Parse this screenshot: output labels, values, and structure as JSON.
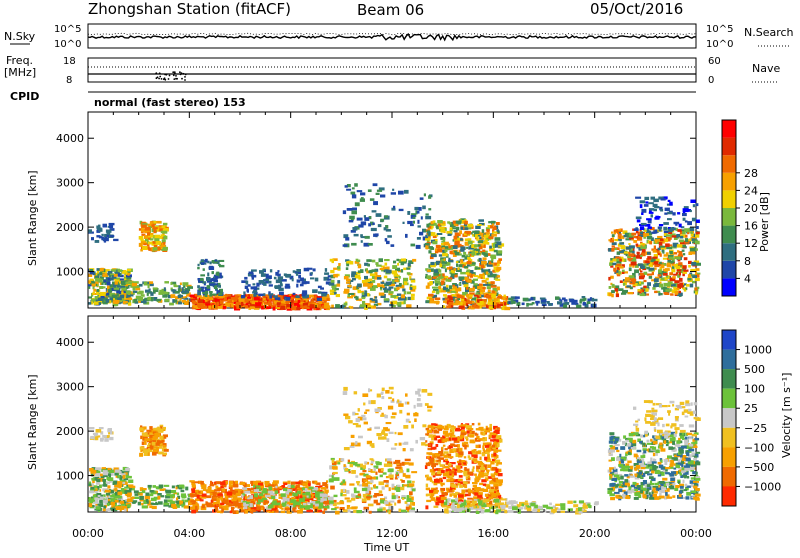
{
  "header": {
    "station": "Zhongshan Station (fitACF)",
    "beam": "Beam 06",
    "date": "05/Oct/2016"
  },
  "top_panels": {
    "nsky_label": "N.Sky",
    "nsky_ticks": [
      "10^5",
      "10^0"
    ],
    "nsearch_label": "N.Search",
    "nsearch_ticks": [
      "10^5",
      "10^0"
    ],
    "freq_label_1": "Freq.",
    "freq_label_2": "[MHz]",
    "freq_ticks": [
      "18",
      "8"
    ],
    "nave_label": "Nave",
    "nave_ticks": [
      "60",
      "0"
    ],
    "cpid_label": "CPID",
    "cpid_text": "normal (fast stereo) 153"
  },
  "chart_data": [
    {
      "type": "heatmap",
      "title": "",
      "xlabel": "Time UT",
      "ylabel": "Slant Range [km]",
      "x_ticks": [
        "00:00",
        "04:00",
        "08:00",
        "12:00",
        "16:00",
        "20:00",
        "00:00"
      ],
      "x_range_hours": [
        0,
        24
      ],
      "y_ticks": [
        "1000",
        "2000",
        "3000",
        "4000"
      ],
      "ylim": [
        180,
        4590
      ],
      "colorbar": {
        "label": "Power [dB]",
        "ticks": [
          "4",
          "8",
          "12",
          "16",
          "20",
          "24",
          "28"
        ],
        "range": [
          0,
          30
        ],
        "colors": [
          "#0000ff",
          "#1f46a8",
          "#2f6e80",
          "#3f8c4f",
          "#7ab83c",
          "#f0d000",
          "#f7a000",
          "#f06a00",
          "#e02a00",
          "#ff0000"
        ]
      },
      "series": [
        {
          "name": "00:00-01:30",
          "values": [
            8,
            12
          ]
        },
        {
          "name": "02:00-03:00",
          "values": [
            16,
            20
          ]
        },
        {
          "name": "04:00-09:00",
          "values": [
            20,
            28
          ]
        },
        {
          "name": "13:30-16:00",
          "values": [
            12,
            24
          ]
        },
        {
          "name": "21:00-24:00",
          "values": [
            12,
            24
          ]
        }
      ]
    },
    {
      "type": "heatmap",
      "title": "",
      "xlabel": "Time UT",
      "ylabel": "Slant Range [km]",
      "x_ticks": [
        "00:00",
        "04:00",
        "08:00",
        "12:00",
        "16:00",
        "20:00",
        "00:00"
      ],
      "x_range_hours": [
        0,
        24
      ],
      "y_ticks": [
        "1000",
        "2000",
        "3000",
        "4000"
      ],
      "ylim": [
        180,
        4590
      ],
      "colorbar": {
        "label": "Velocity [m s⁻¹]",
        "ticks": [
          "1000",
          "500",
          "100",
          "25",
          "−25",
          "−100",
          "−500",
          "−1000"
        ],
        "colors": [
          "#1f46c8",
          "#2f6e9c",
          "#3f8c4f",
          "#6cc23a",
          "#c8c8c8",
          "#f0c020",
          "#f7a000",
          "#f06a00",
          "#ff2a00"
        ]
      },
      "series": [
        {
          "name": "00:00-01:30",
          "values": [
            -25,
            100
          ]
        },
        {
          "name": "02:00-03:00",
          "values": [
            -500,
            -100
          ]
        },
        {
          "name": "04:00-09:00",
          "values": [
            -500,
            -100
          ]
        },
        {
          "name": "13:30-16:00",
          "values": [
            -500,
            -100
          ]
        },
        {
          "name": "21:00-24:00",
          "values": [
            25,
            500
          ]
        }
      ]
    }
  ]
}
